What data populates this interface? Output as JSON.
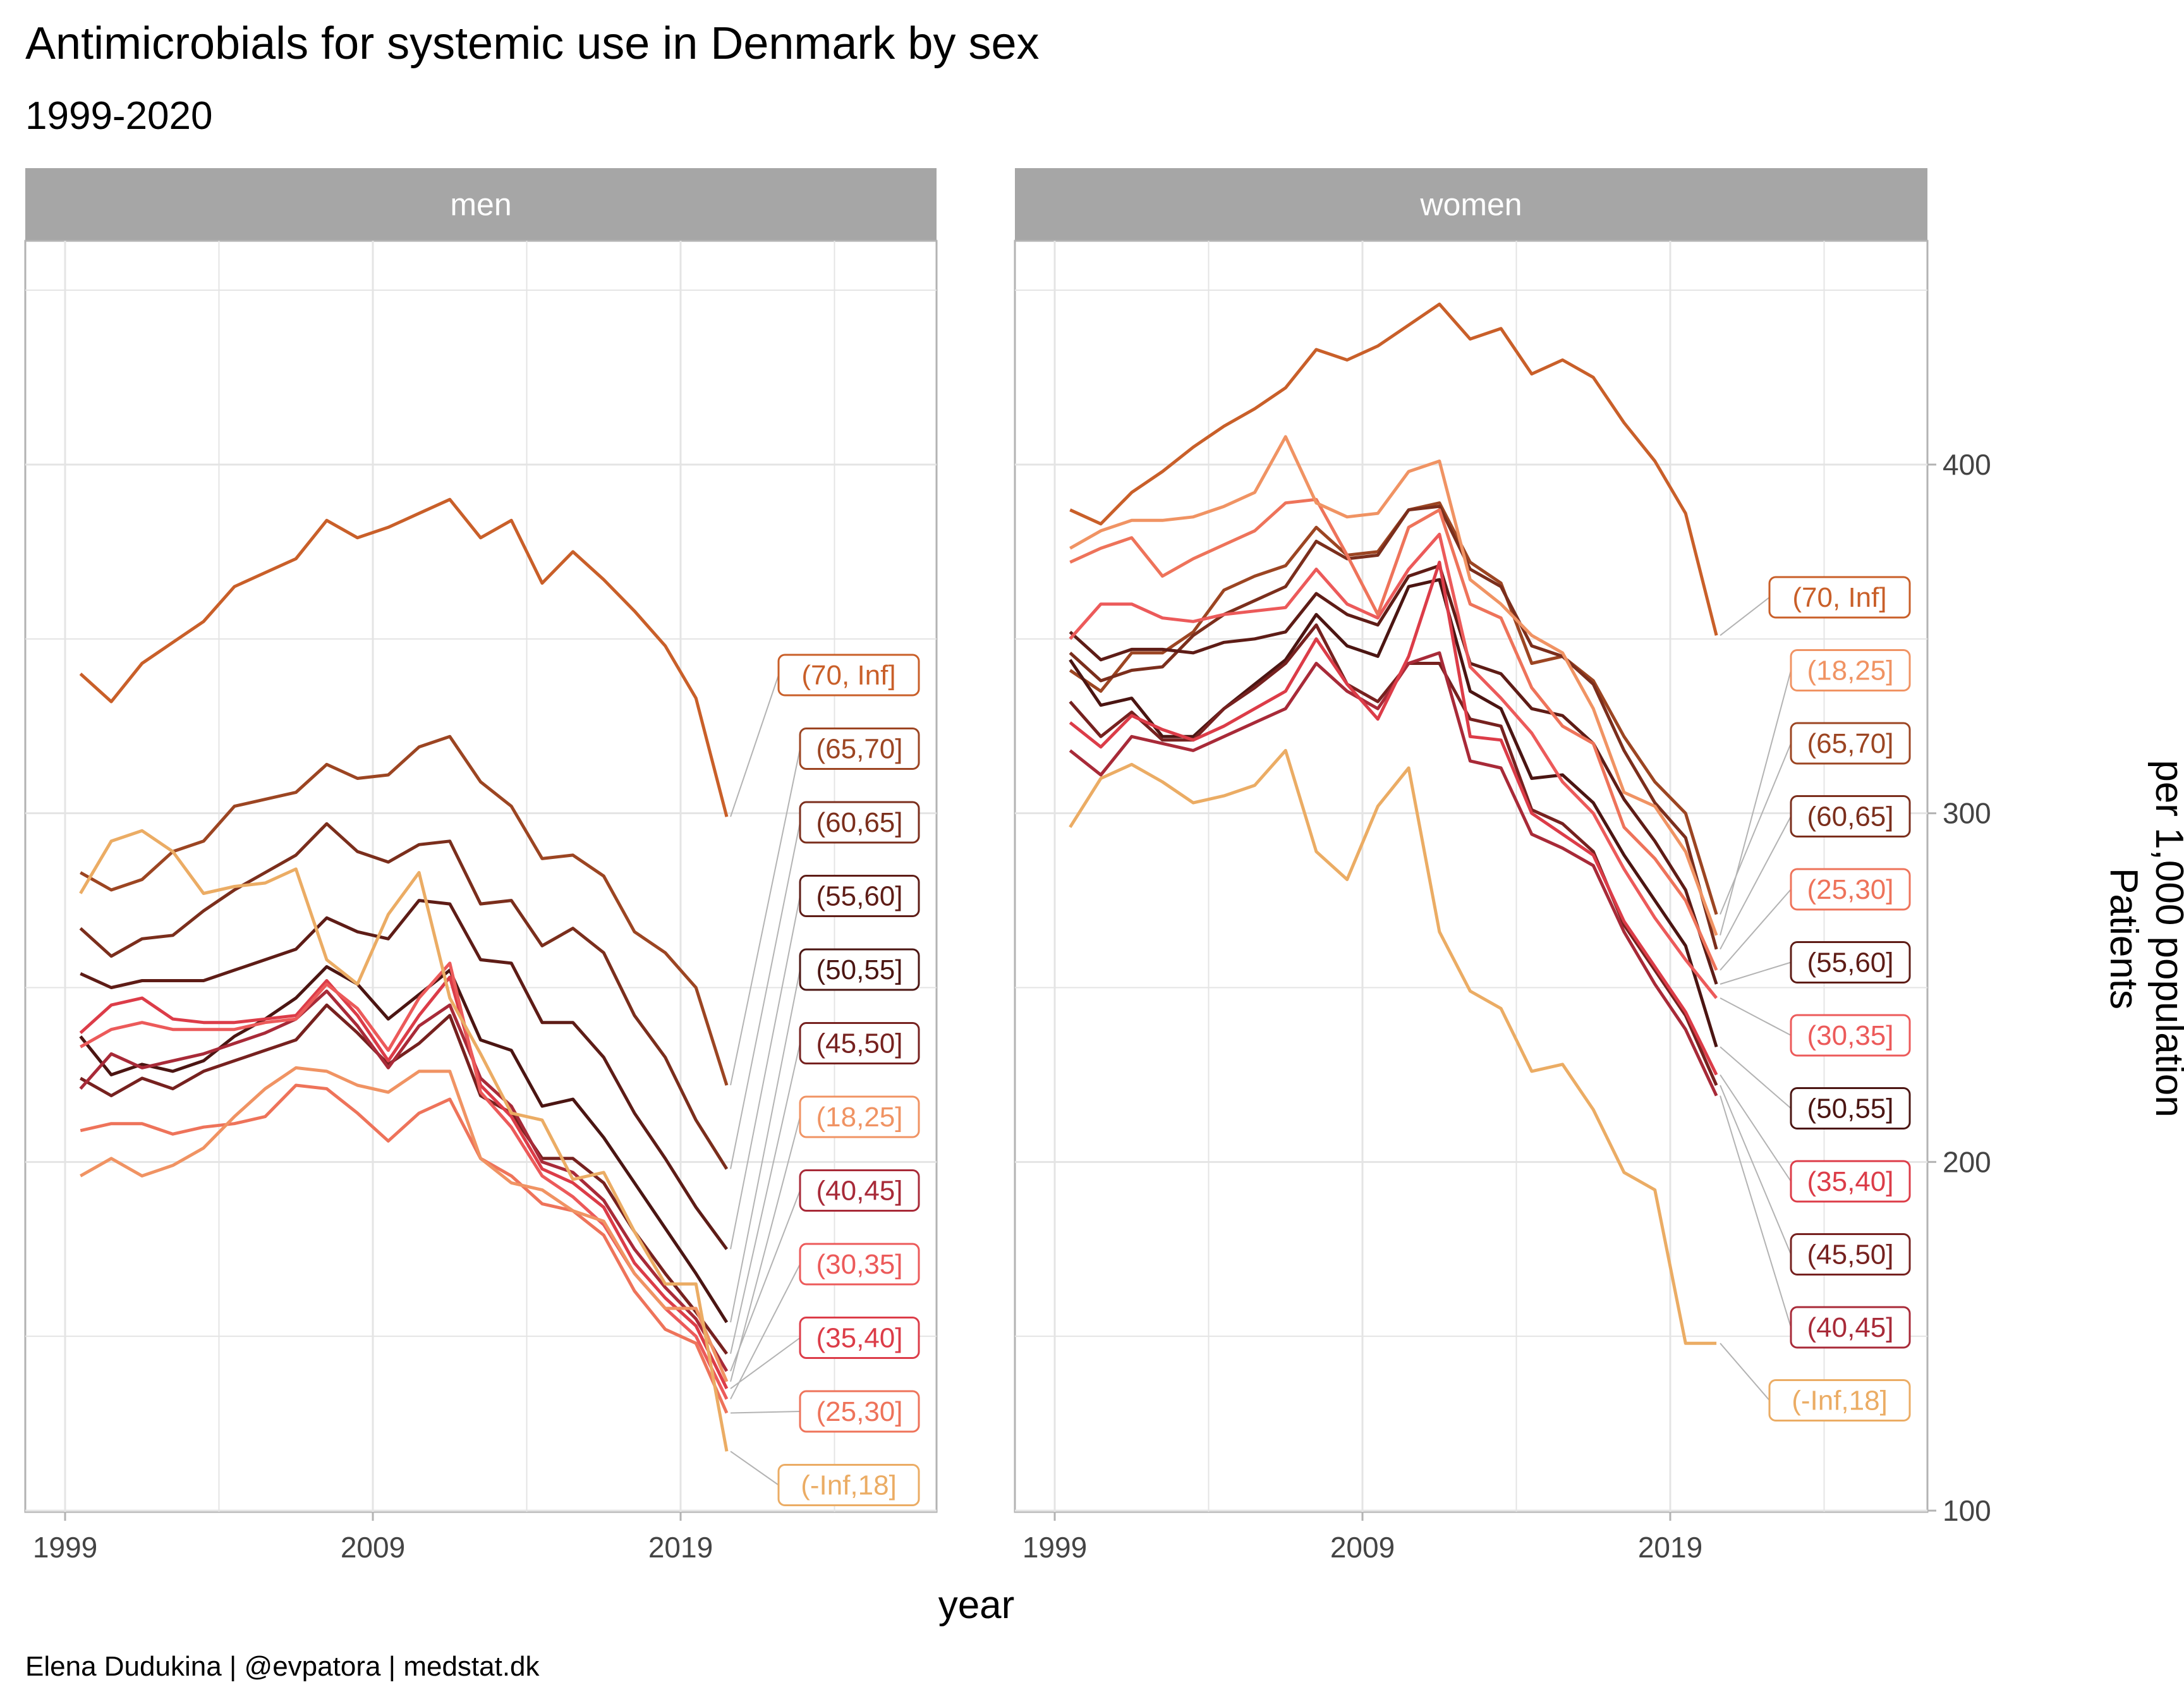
{
  "title": "Antimicrobials for systemic use in Denmark by sex",
  "subtitle": "1999-2020",
  "caption": "Elena Dudukina | @evpatora | medstat.dk",
  "chart_data": {
    "type": "line",
    "title": "Antimicrobials for systemic use in Denmark by sex",
    "subtitle": "1999-2020",
    "xlabel": "year",
    "ylabel": "Patients\nper 1,000 population",
    "ylabel_lines": [
      "Patients",
      "per 1,000 population"
    ],
    "x_ticks": [
      1999,
      2009,
      2019
    ],
    "y_ticks": [
      100,
      200,
      300,
      400
    ],
    "xlim": [
      1998.2,
      2027.8
    ],
    "ylim": [
      100,
      465
    ],
    "grid": true,
    "y_axis_position": "right",
    "legend": "direct labels at line ends",
    "x": [
      1999,
      2000,
      2001,
      2002,
      2003,
      2004,
      2005,
      2006,
      2007,
      2008,
      2009,
      2010,
      2011,
      2012,
      2013,
      2014,
      2015,
      2016,
      2017,
      2018,
      2019,
      2020
    ],
    "colors": {
      "(70, Inf]": "#c95f29",
      "(65,70]": "#9c4522",
      "(60,65]": "#7b2e1c",
      "(55,60]": "#5e1c16",
      "(50,55]": "#4b1512",
      "(45,50]": "#76211f",
      "(40,45]": "#a82a38",
      "(35,40]": "#dc3c48",
      "(30,35]": "#ec5a5a",
      "(25,30]": "#ee735a",
      "(18,25]": "#f09363",
      "(-Inf,18]": "#ebac64"
    },
    "panels": [
      {
        "name": "men",
        "label_order": [
          "(70, Inf]",
          "(65,70]",
          "(60,65]",
          "(55,60]",
          "(50,55]",
          "(45,50]",
          "(18,25]",
          "(40,45]",
          "(30,35]",
          "(35,40]",
          "(25,30]",
          "(-Inf,18]"
        ],
        "series": [
          {
            "name": "(70, Inf]",
            "values": [
              340,
              332,
              343,
              349,
              355,
              365,
              369,
              373,
              384,
              379,
              382,
              386,
              390,
              379,
              384,
              366,
              375,
              367,
              358,
              348,
              333,
              299
            ]
          },
          {
            "name": "(65,70]",
            "values": [
              283,
              278,
              281,
              289,
              292,
              302,
              304,
              306,
              314,
              310,
              311,
              319,
              322,
              309,
              302,
              287,
              288,
              282,
              266,
              260,
              250,
              222
            ]
          },
          {
            "name": "(60,65]",
            "values": [
              267,
              259,
              264,
              265,
              272,
              278,
              283,
              288,
              297,
              289,
              286,
              291,
              292,
              274,
              275,
              262,
              267,
              260,
              242,
              230,
              212,
              198
            ]
          },
          {
            "name": "(55,60]",
            "values": [
              254,
              250,
              252,
              252,
              252,
              255,
              258,
              261,
              270,
              266,
              264,
              275,
              274,
              258,
              257,
              240,
              240,
              230,
              214,
              201,
              187,
              175
            ]
          },
          {
            "name": "(50,55]",
            "values": [
              236,
              225,
              228,
              226,
              229,
              236,
              241,
              247,
              256,
              251,
              241,
              248,
              255,
              235,
              232,
              216,
              218,
              207,
              194,
              181,
              168,
              154
            ]
          },
          {
            "name": "(45,50]",
            "values": [
              224,
              219,
              224,
              221,
              226,
              229,
              232,
              235,
              245,
              237,
              228,
              234,
              242,
              219,
              214,
              201,
              201,
              194,
              180,
              168,
              157,
              145
            ]
          },
          {
            "name": "(40,45]",
            "values": null,
            "values_est": [
              221,
              231,
              227,
              229,
              231,
              234,
              237,
              241,
              249,
              239,
              227,
              239,
              245,
              224,
              216,
              200,
              197,
              189,
              175,
              164,
              155,
              140
            ]
          },
          {
            "name": "(35,40]",
            "values": [
              237,
              245,
              247,
              241,
              240,
              240,
              241,
              242,
              252,
              242,
              229,
              242,
              253,
              222,
              213,
              198,
              194,
              187,
              171,
              161,
              153,
              135
            ]
          },
          {
            "name": "(30,35]",
            "values": [
              233,
              238,
              240,
              238,
              238,
              238,
              240,
              241,
              251,
              244,
              232,
              247,
              257,
              220,
              210,
              196,
              190,
              182,
              168,
              158,
              150,
              132
            ]
          },
          {
            "name": "(25,30]",
            "values": [
              209,
              211,
              211,
              208,
              210,
              211,
              213,
              222,
              221,
              214,
              206,
              214,
              218,
              201,
              196,
              188,
              186,
              179,
              163,
              152,
              148,
              128
            ]
          },
          {
            "name": "(18,25]",
            "values": [
              196,
              201,
              196,
              199,
              204,
              213,
              221,
              227,
              226,
              222,
              220,
              226,
              226,
              201,
              194,
              192,
              186,
              183,
              168,
              158,
              158,
              137
            ]
          },
          {
            "name": "(-Inf,18]",
            "values": [
              277,
              292,
              295,
              289,
              277,
              279,
              280,
              284,
              258,
              251,
              271,
              283,
              247,
              231,
              214,
              212,
              195,
              197,
              180,
              165,
              165,
              117
            ]
          }
        ]
      },
      {
        "name": "women",
        "label_order": [
          "(70, Inf]",
          "(18,25]",
          "(65,70]",
          "(60,65]",
          "(25,30]",
          "(55,60]",
          "(30,35]",
          "(50,55]",
          "(35,40]",
          "(45,50]",
          "(40,45]",
          "(-Inf,18]"
        ],
        "series": [
          {
            "name": "(70, Inf]",
            "values": [
              387,
              383,
              392,
              398,
              405,
              411,
              416,
              422,
              433,
              430,
              434,
              440,
              446,
              436,
              439,
              426,
              430,
              425,
              412,
              401,
              386,
              351
            ]
          },
          {
            "name": "(65,70]",
            "values": [
              341,
              335,
              346,
              346,
              352,
              364,
              368,
              371,
              382,
              374,
              375,
              387,
              389,
              372,
              366,
              343,
              345,
              338,
              322,
              309,
              300,
              271
            ]
          },
          {
            "name": "(60,65]",
            "values": [
              346,
              338,
              341,
              342,
              351,
              357,
              361,
              365,
              378,
              373,
              374,
              387,
              388,
              370,
              365,
              348,
              345,
              337,
              318,
              303,
              293,
              261
            ]
          },
          {
            "name": "(55,60]",
            "values": [
              352,
              344,
              347,
              347,
              346,
              349,
              350,
              352,
              363,
              357,
              354,
              368,
              371,
              343,
              340,
              330,
              328,
              320,
              304,
              292,
              278,
              251
            ]
          },
          {
            "name": "(50,55]",
            "values": [
              344,
              331,
              333,
              322,
              322,
              330,
              337,
              344,
              357,
              348,
              345,
              365,
              367,
              335,
              330,
              310,
              311,
              303,
              288,
              275,
              262,
              233
            ]
          },
          {
            "name": "(45,50]",
            "values": [
              332,
              322,
              329,
              321,
              321,
              330,
              336,
              343,
              354,
              337,
              332,
              343,
              343,
              327,
              325,
              301,
              297,
              289,
              268,
              255,
              242,
              222
            ]
          },
          {
            "name": "(40,45]",
            "values": [
              318,
              311,
              322,
              320,
              318,
              322,
              326,
              330,
              343,
              335,
              330,
              343,
              346,
              315,
              313,
              294,
              290,
              285,
              266,
              251,
              238,
              219
            ]
          },
          {
            "name": "(35,40]",
            "values": [
              326,
              319,
              328,
              324,
              321,
              325,
              330,
              335,
              350,
              337,
              327,
              345,
              372,
              322,
              321,
              300,
              294,
              288,
              269,
              256,
              243,
              225
            ]
          },
          {
            "name": "(30,35]",
            "values": [
              350,
              360,
              360,
              356,
              355,
              357,
              358,
              359,
              370,
              360,
              356,
              370,
              380,
              342,
              333,
              323,
              309,
              300,
              284,
              270,
              258,
              247
            ]
          },
          {
            "name": "(25,30]",
            "values": [
              372,
              376,
              379,
              368,
              373,
              377,
              381,
              389,
              390,
              374,
              357,
              382,
              387,
              360,
              356,
              336,
              325,
              320,
              296,
              287,
              275,
              255
            ]
          },
          {
            "name": "(18,25]",
            "values": [
              376,
              381,
              384,
              384,
              385,
              388,
              392,
              408,
              389,
              385,
              386,
              398,
              401,
              367,
              360,
              351,
              346,
              330,
              306,
              302,
              289,
              265
            ]
          },
          {
            "name": "(-Inf,18]",
            "values": [
              296,
              310,
              314,
              309,
              303,
              305,
              308,
              318,
              289,
              281,
              302,
              313,
              266,
              249,
              244,
              226,
              228,
              215,
              197,
              192,
              148,
              148
            ]
          }
        ]
      }
    ]
  }
}
